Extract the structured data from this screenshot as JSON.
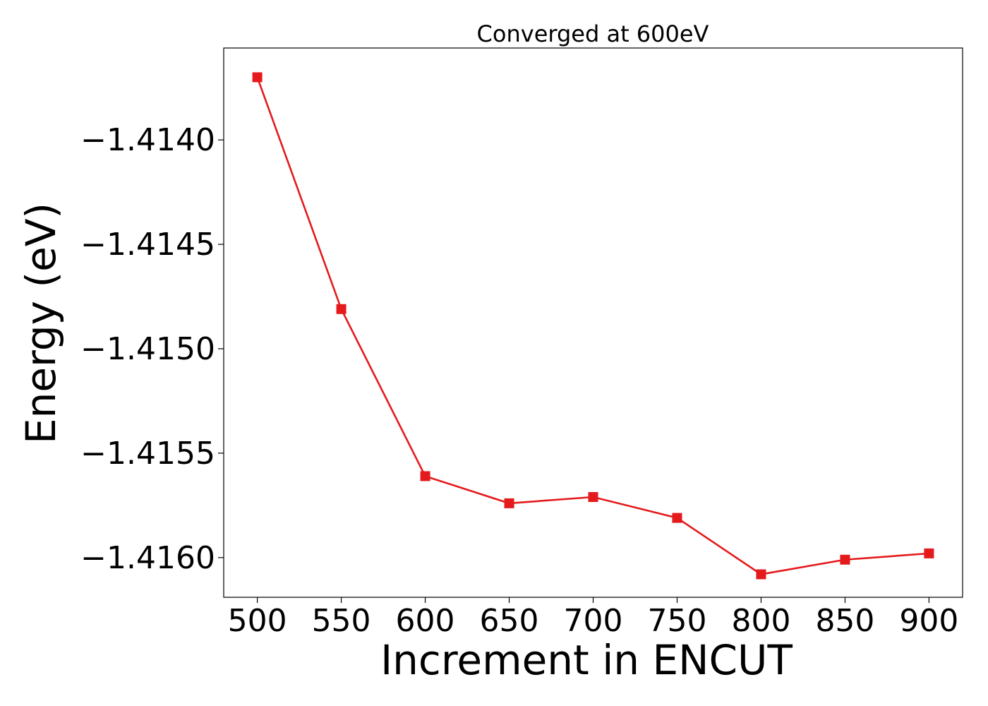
{
  "chart_data": {
    "type": "line",
    "title": "Converged at 600eV",
    "xlabel": "Increment in ENCUT",
    "ylabel": "Energy (eV)",
    "x": [
      500,
      550,
      600,
      650,
      700,
      750,
      800,
      850,
      900
    ],
    "x_ticks": [
      "500",
      "550",
      "600",
      "650",
      "700",
      "750",
      "800",
      "850",
      "900"
    ],
    "y_ticks": [
      -1.416,
      -1.4155,
      -1.415,
      -1.4145,
      -1.414
    ],
    "y_tick_labels": [
      "−1.4160",
      "−1.4155",
      "−1.4150",
      "−1.4145",
      "−1.4140"
    ],
    "xlim": [
      480,
      920
    ],
    "ylim": [
      -1.41619,
      -1.41356
    ],
    "grid": false,
    "series": [
      {
        "values": [
          -1.4137,
          -1.41481,
          -1.41561,
          -1.41574,
          -1.41571,
          -1.41581,
          -1.41608,
          -1.41601,
          -1.41598
        ],
        "color": "#e41a1c",
        "marker": "square"
      }
    ]
  }
}
